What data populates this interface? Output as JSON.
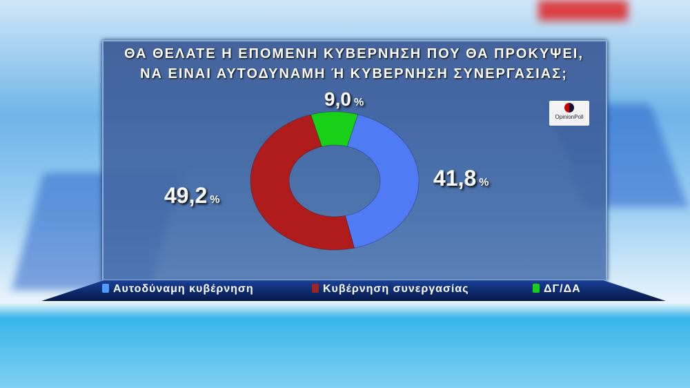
{
  "title_lines": [
    "ΘΑ ΘΕΛΑΤΕ Η ΕΠΟΜΕΝΗ ΚΥΒΕΡΝΗΣΗ ΠΟΥ ΘΑ ΠΡΟΚΥΨΕΙ,",
    "ΝΑ ΕΙΝΑΙ ΑΥΤΟΔΥΝΑΜΗ Ή ΚΥΒΕΡΝΗΣΗ ΣΥΝΕΡΓΑΣΙΑΣ;"
  ],
  "logo": "OpinionPoll",
  "chart_data": {
    "type": "pie",
    "donut": true,
    "categories": [
      "Αυτοδύναμη κυβέρνηση",
      "Κυβέρνηση συνεργασίας",
      "ΔΓ/ΔΑ"
    ],
    "values": [
      41.8,
      49.2,
      9.0
    ],
    "labels": [
      "41,8",
      "49,2",
      "9,0"
    ],
    "unit": "%",
    "colors": [
      "#4f7cf5",
      "#b01c1c",
      "#18d018"
    ],
    "legend_placement": "bottom"
  }
}
